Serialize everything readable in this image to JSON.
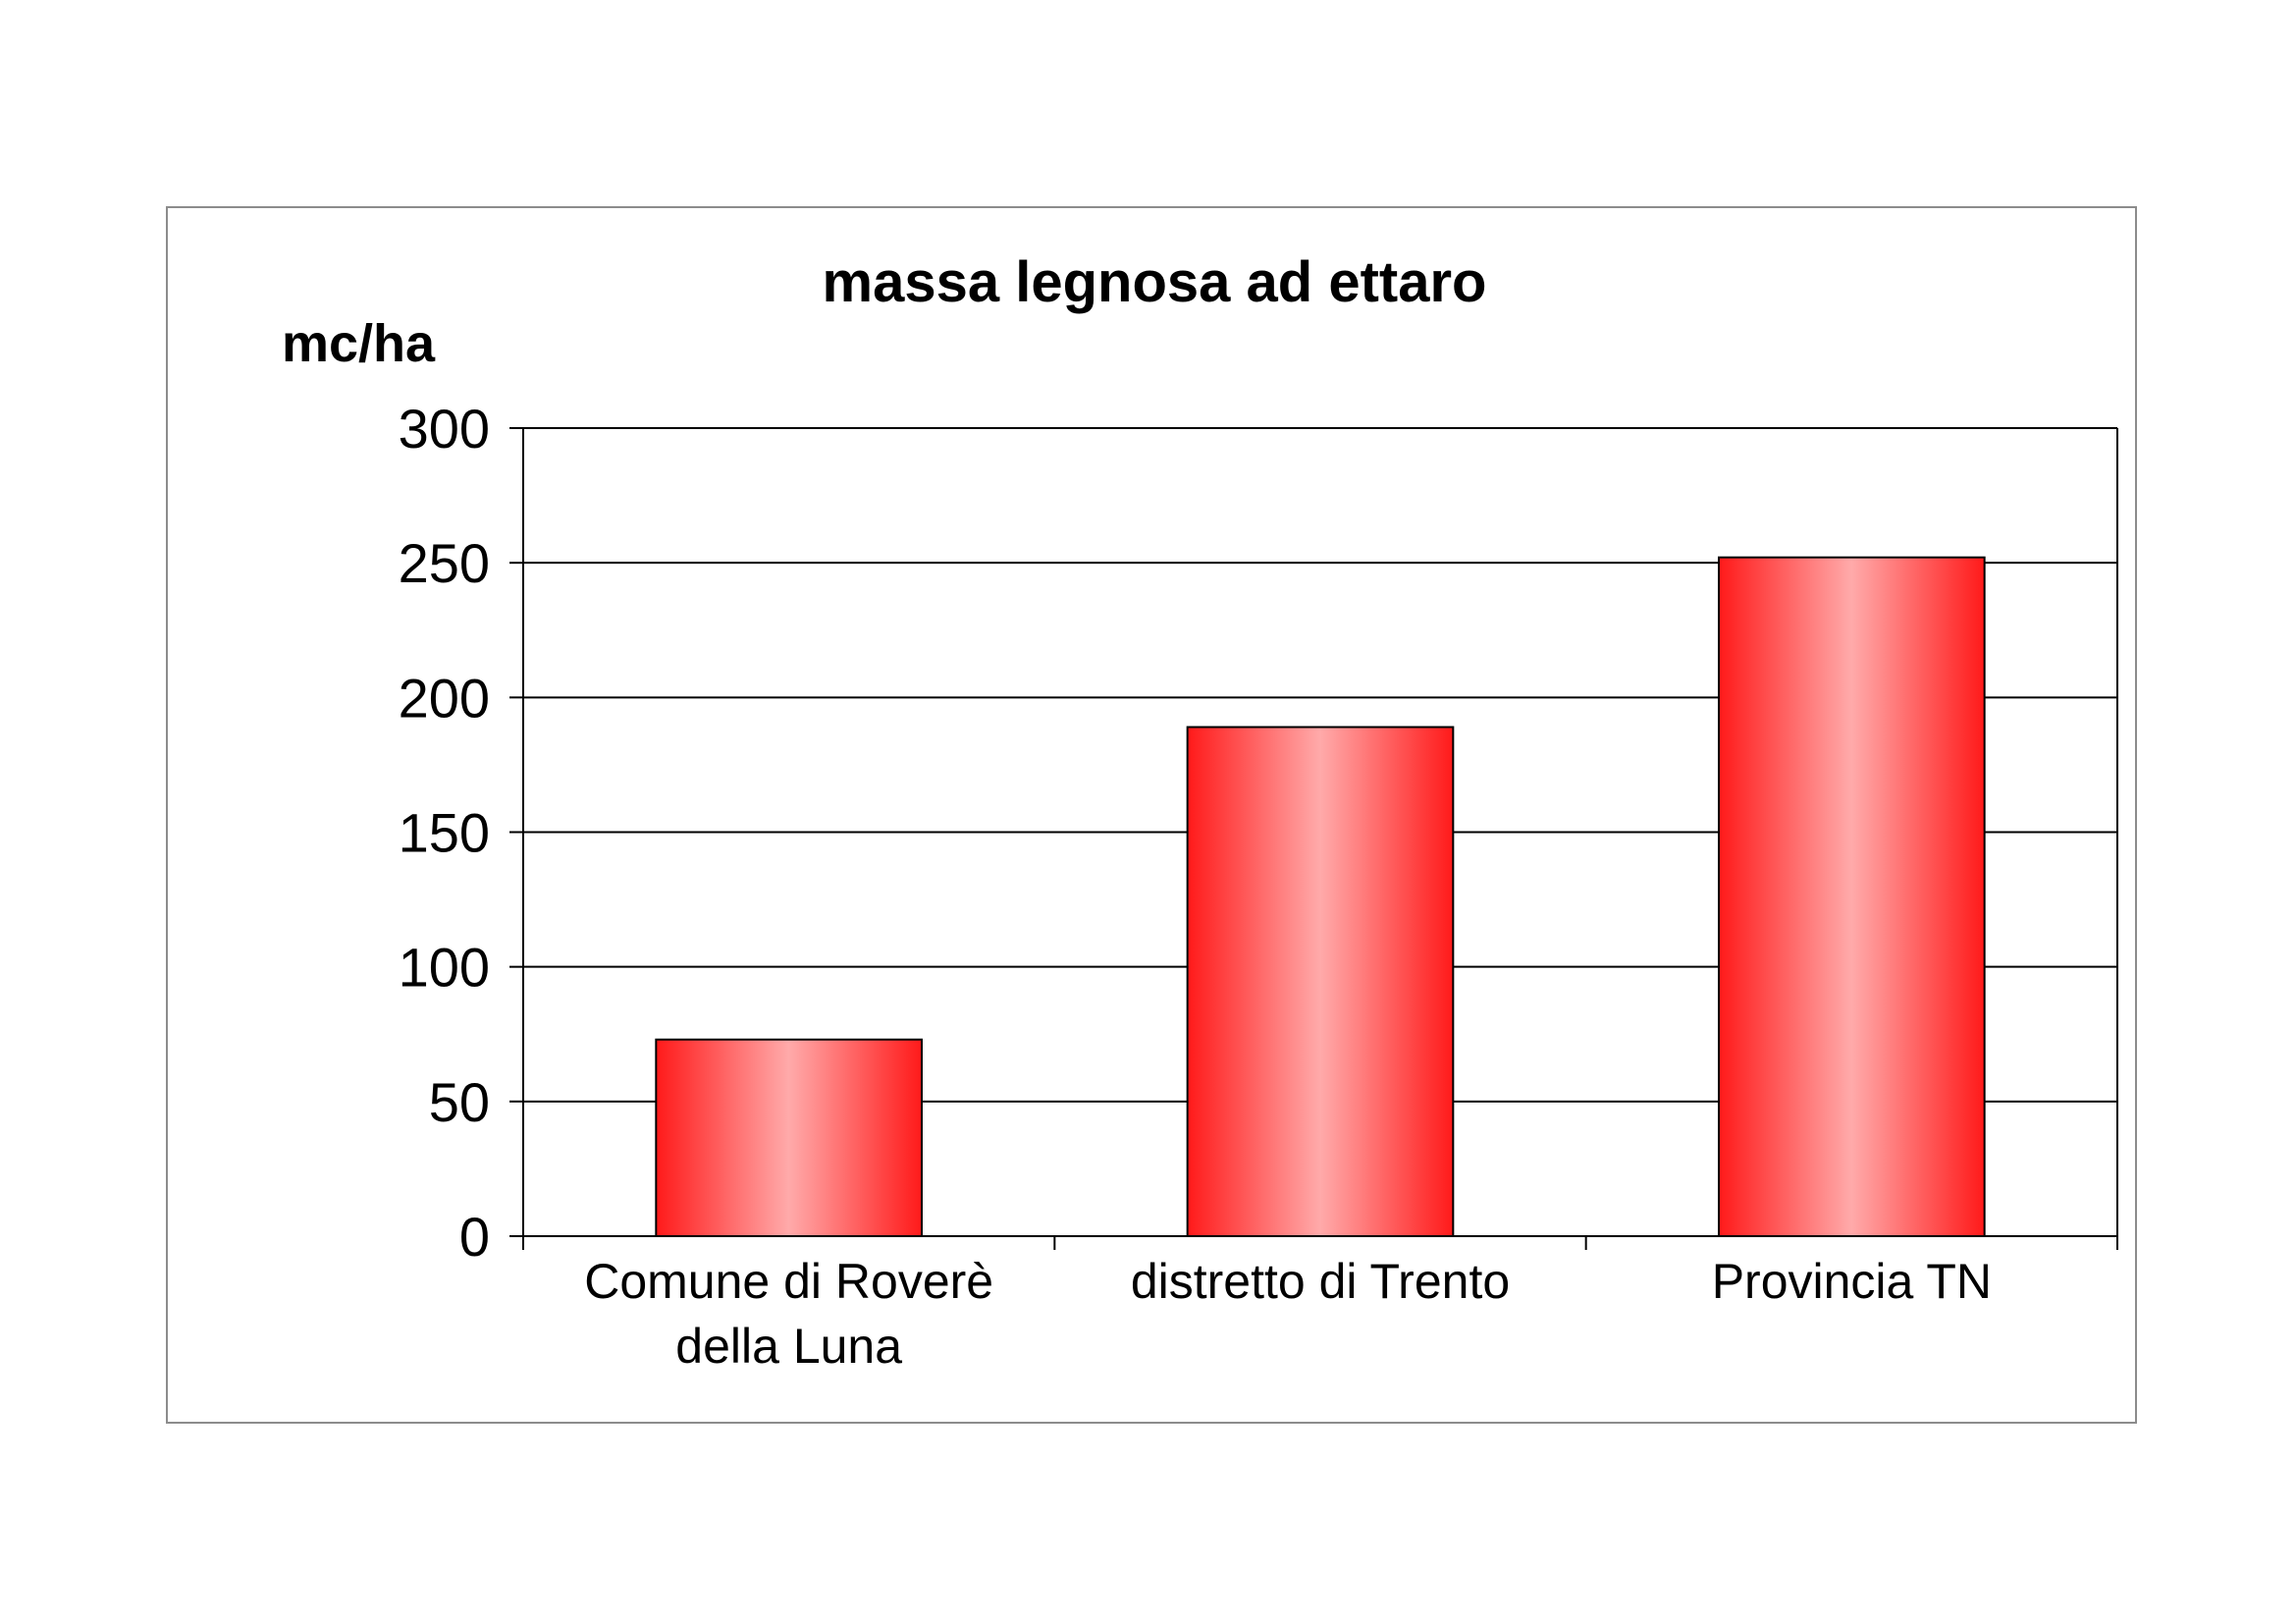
{
  "chart_data": {
    "type": "bar",
    "title": "massa legnosa ad ettaro",
    "ylabel": "mc/ha",
    "xlabel": "",
    "categories": [
      [
        "Comune di Roverè",
        "della Luna"
      ],
      [
        "distretto di Trento"
      ],
      [
        "Provincia TN"
      ]
    ],
    "values": [
      73,
      189,
      252
    ],
    "ylim": [
      0,
      300
    ],
    "yticks": [
      "0",
      "50",
      "100",
      "150",
      "200",
      "250",
      "300"
    ],
    "grid": true,
    "legend": "none",
    "colors": {
      "bar_edge": "#ff1a1a",
      "bar_center": "#ffaaaa",
      "bar_outline": "#000000",
      "gridline": "#000000",
      "frame_border": "#8c8c8c"
    }
  }
}
